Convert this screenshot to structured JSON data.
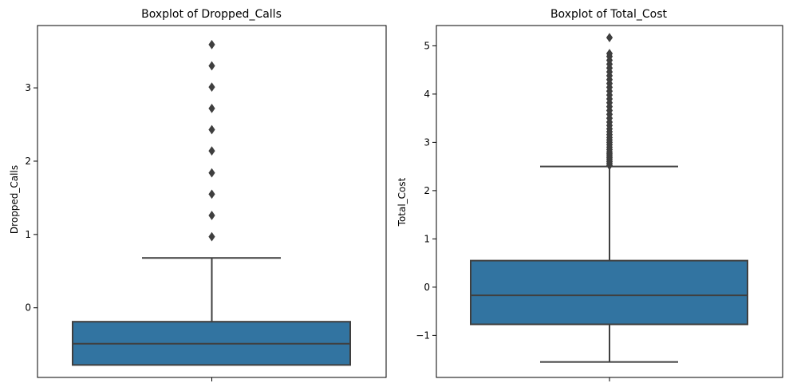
{
  "chart_data": [
    {
      "type": "box",
      "title": "Boxplot of Dropped_Calls",
      "xlabel": "",
      "ylabel": "Dropped_Calls",
      "ylim": [
        -0.95,
        3.85
      ],
      "yticks": [
        0,
        1,
        2,
        3
      ],
      "ytick_labels": [
        "0",
        "1",
        "2",
        "3"
      ],
      "grid": false,
      "color": "#3274a1",
      "box": {
        "whisker_low": -0.78,
        "q1": -0.78,
        "median": -0.49,
        "q3": -0.19,
        "whisker_high": 0.68
      },
      "outliers": [
        0.97,
        1.26,
        1.55,
        1.84,
        2.14,
        2.43,
        2.72,
        3.01,
        3.3,
        3.59
      ]
    },
    {
      "type": "box",
      "title": "Boxplot of Total_Cost",
      "xlabel": "",
      "ylabel": "Total_Cost",
      "ylim": [
        -1.87,
        5.42
      ],
      "yticks": [
        -1,
        0,
        1,
        2,
        3,
        4,
        5
      ],
      "ytick_labels": [
        "−1",
        "0",
        "1",
        "2",
        "3",
        "4",
        "5"
      ],
      "grid": false,
      "color": "#3274a1",
      "box": {
        "whisker_low": -1.55,
        "q1": -0.77,
        "median": -0.17,
        "q3": 0.55,
        "whisker_high": 2.5
      },
      "outliers": [
        2.52,
        2.56,
        2.6,
        2.64,
        2.68,
        2.72,
        2.76,
        2.8,
        2.85,
        2.9,
        2.95,
        3.0,
        3.05,
        3.1,
        3.16,
        3.22,
        3.28,
        3.35,
        3.42,
        3.5,
        3.58,
        3.66,
        3.74,
        3.82,
        3.9,
        3.98,
        4.06,
        4.14,
        4.22,
        4.3,
        4.38,
        4.46,
        4.54,
        4.62,
        4.7,
        4.78,
        4.84,
        5.17
      ]
    }
  ]
}
